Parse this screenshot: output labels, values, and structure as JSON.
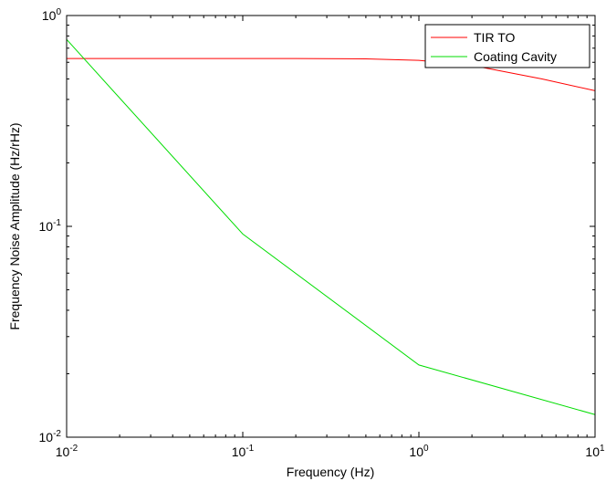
{
  "chart_data": {
    "type": "line",
    "title": "",
    "xlabel": "Frequency (Hz)",
    "ylabel": "Frequency Noise Amplitude (Hz/rHz)",
    "xscale": "log",
    "yscale": "log",
    "xlim": [
      0.01,
      10
    ],
    "ylim": [
      0.01,
      1
    ],
    "grid": false,
    "legend_position": "top-right",
    "x_ticks": [
      {
        "value": 0.01,
        "base": "10",
        "exp": "-2"
      },
      {
        "value": 0.1,
        "base": "10",
        "exp": "-1"
      },
      {
        "value": 1,
        "base": "10",
        "exp": "0"
      },
      {
        "value": 10,
        "base": "10",
        "exp": "1"
      }
    ],
    "y_ticks": [
      {
        "value": 0.01,
        "base": "10",
        "exp": "-2"
      },
      {
        "value": 0.1,
        "base": "10",
        "exp": "-1"
      },
      {
        "value": 1,
        "base": "10",
        "exp": "0"
      }
    ],
    "series": [
      {
        "name": "TIR TO",
        "color": "#ff0000",
        "x": [
          0.01,
          0.02,
          0.05,
          0.1,
          0.2,
          0.5,
          1,
          2,
          5,
          10
        ],
        "y": [
          0.625,
          0.625,
          0.625,
          0.625,
          0.625,
          0.623,
          0.613,
          0.58,
          0.5,
          0.44
        ]
      },
      {
        "name": "Coating Cavity",
        "color": "#00dd00",
        "x": [
          0.01,
          0.1,
          1,
          10
        ],
        "y": [
          0.77,
          0.092,
          0.022,
          0.0128
        ]
      }
    ]
  }
}
